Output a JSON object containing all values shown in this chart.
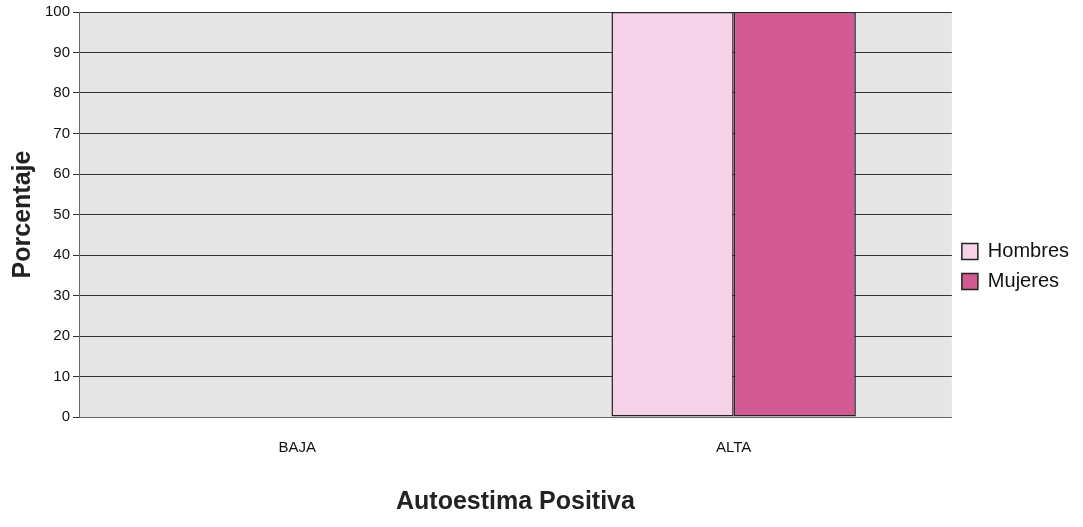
{
  "chart_data": {
    "type": "bar",
    "xlabel": "Autoestima Positiva",
    "ylabel": "Porcentaje",
    "categories": [
      "BAJA",
      "ALTA"
    ],
    "series": [
      {
        "name": "Hombres",
        "color": "#f6d2e8",
        "values": [
          0,
          100
        ]
      },
      {
        "name": "Mujeres",
        "color": "#d25a92",
        "values": [
          0,
          100
        ]
      }
    ],
    "ylim": [
      0,
      100
    ],
    "yticks": [
      0,
      10,
      20,
      30,
      40,
      50,
      60,
      70,
      80,
      90,
      100
    ],
    "grid": "y",
    "legend": "right"
  }
}
